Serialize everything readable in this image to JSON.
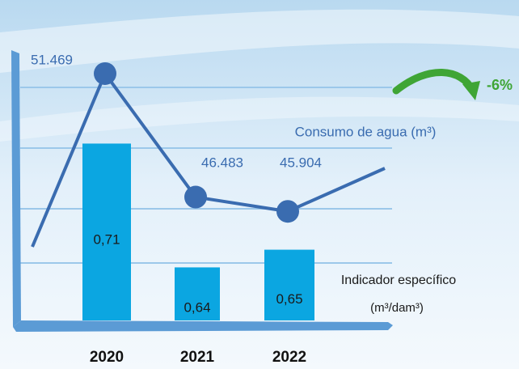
{
  "chart_data": {
    "type": "bar-line",
    "categories": [
      "2020",
      "2021",
      "2022"
    ],
    "series": [
      {
        "name": "Indicador específico",
        "unit": "(m³/dam³)",
        "type": "bar",
        "color": "#0ba6e1",
        "values": [
          0.71,
          0.64,
          0.65
        ],
        "value_labels": [
          "0,71",
          "0,64",
          "0,65"
        ]
      },
      {
        "name": "Consumo de agua (m³)",
        "type": "line",
        "axis": "y2",
        "color": "#3a6cb0",
        "values": [
          51469,
          46483,
          45904
        ],
        "value_labels": [
          "51.469",
          "46.483",
          "45.904"
        ]
      }
    ],
    "ylim": [
      0.61,
      0.75
    ],
    "y2lim": [
      41500,
      51500
    ],
    "annotation": "-6%",
    "annotation_color": "#3fa535"
  }
}
